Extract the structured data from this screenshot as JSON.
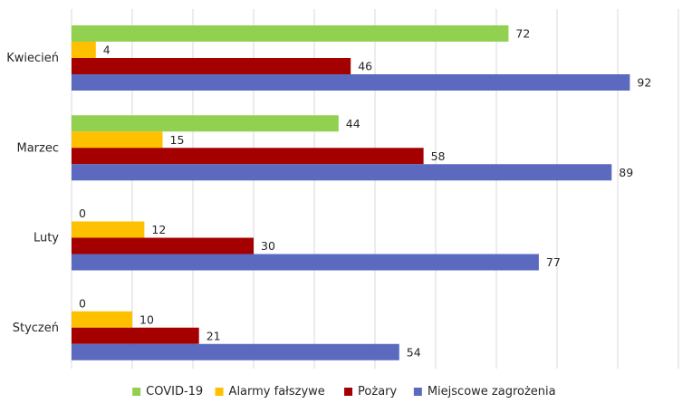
{
  "chart_data": {
    "type": "bar",
    "orientation": "horizontal",
    "categories": [
      "Kwiecień",
      "Marzec",
      "Luty",
      "Styczeń"
    ],
    "series": [
      {
        "name": "COVID-19",
        "color": "#92d050",
        "values": [
          72,
          44,
          0,
          0
        ]
      },
      {
        "name": "Alarmy fałszywe",
        "color": "#ffc000",
        "values": [
          4,
          15,
          12,
          10
        ]
      },
      {
        "name": "Pożary",
        "color": "#a50000",
        "values": [
          46,
          58,
          30,
          21
        ]
      },
      {
        "name": "Miejscowe zagrożenia",
        "color": "#5b6abf",
        "values": [
          92,
          89,
          77,
          54
        ]
      }
    ],
    "xlim": [
      0,
      100
    ],
    "grid": true,
    "data_labels": true,
    "legend_position": "bottom",
    "title": "",
    "xlabel": "",
    "ylabel": ""
  }
}
